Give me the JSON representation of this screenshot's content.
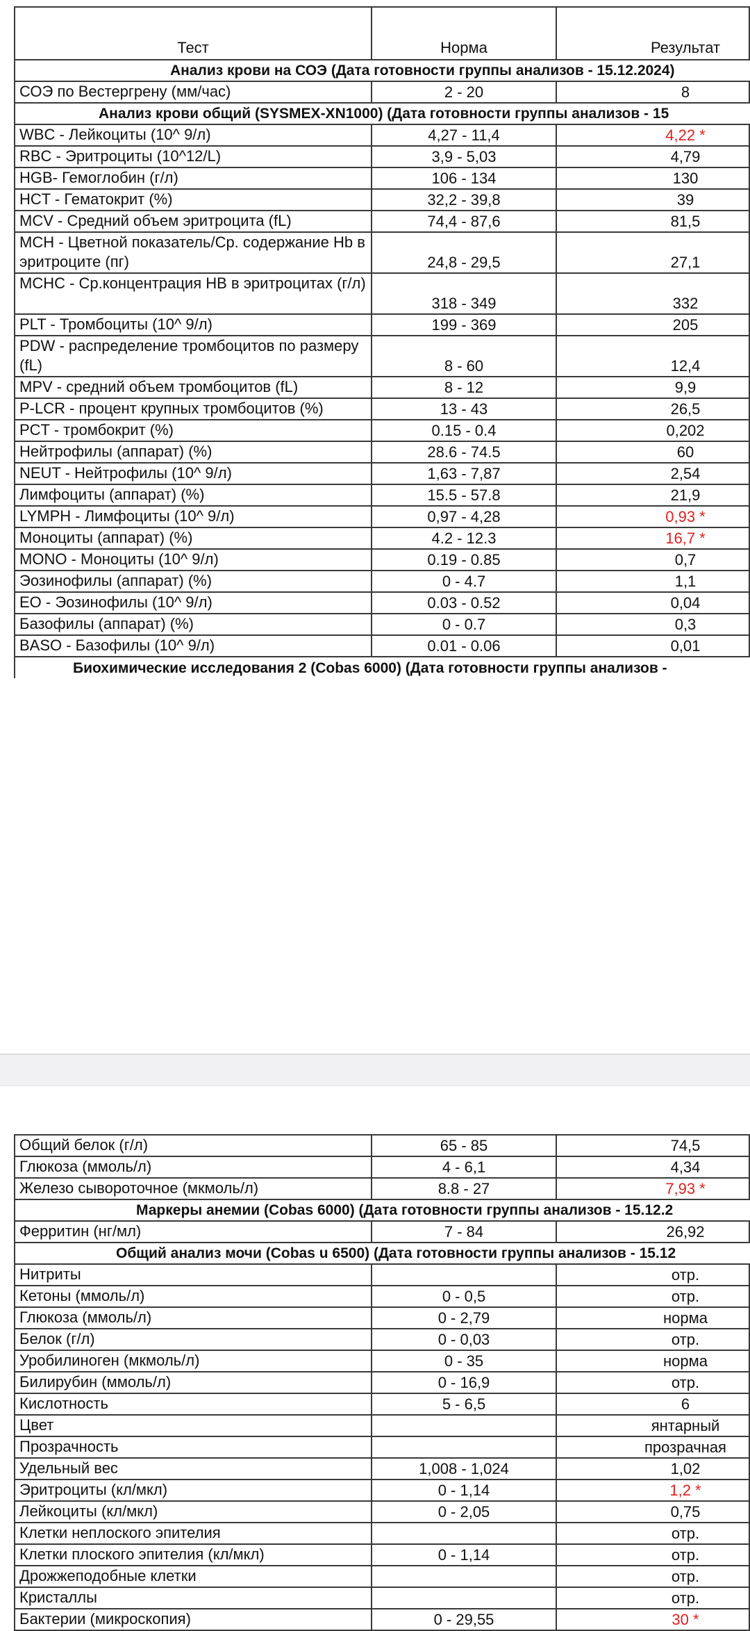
{
  "header": {
    "test": "Тест",
    "norm": "Норма",
    "result": "Результат"
  },
  "page1": [
    {
      "type": "section",
      "text": "Анализ крови на СОЭ   (Дата готовности группы анализов - 15.12.2024)",
      "indent": 223
    },
    {
      "test": "СОЭ по Вестергрену (мм/час)",
      "norm": "2 - 20",
      "result": "8"
    },
    {
      "type": "section",
      "text": "Анализ крови общий (SYSMEX-XN1000)   (Дата готовности группы анализов - 15",
      "indent": 120
    },
    {
      "test": "WBC - Лейкоциты (10^ 9/л)",
      "norm": "4,27 - 11,4",
      "result": "4,22 *",
      "flag": true
    },
    {
      "test": "RBC - Эритроциты (10^12/L)",
      "norm": "3,9 - 5,03",
      "result": "4,79"
    },
    {
      "test": "HGB- Гемоглобин (г/л)",
      "norm": "106 - 134",
      "result": "130"
    },
    {
      "test": "HCT - Гематокрит (%)",
      "norm": "32,2 - 39,8",
      "result": "39"
    },
    {
      "test": "MCV - Средний объем эритроцита (fL)",
      "norm": "74,4 - 87,6",
      "result": "81,5"
    },
    {
      "test": "MCH - Цветной показатель/Ср. содержание Hb в эритроците (пг)",
      "norm": "24,8 - 29,5",
      "result": "27,1",
      "double": true
    },
    {
      "test": "MCHC - Ср.концентрация HB в эритроцитах (г/л)",
      "norm": "318 - 349",
      "result": "332",
      "double": true
    },
    {
      "test": "PLT - Тромбоциты (10^ 9/л)",
      "norm": "199 - 369",
      "result": "205"
    },
    {
      "test": "PDW -  распределение тромбоцитов по размеру (fL)",
      "norm": "8 - 60",
      "result": "12,4",
      "double": true
    },
    {
      "test": "MPV - средний объем тромбоцитов (fL)",
      "norm": "8 - 12",
      "result": "9,9"
    },
    {
      "test": "P-LCR - процент крупных тромбоцитов (%)",
      "norm": "13 - 43",
      "result": "26,5"
    },
    {
      "test": "PCT - тромбокрит (%)",
      "norm": "0.15 - 0.4",
      "result": "0,202"
    },
    {
      "test": "Нейтрофилы (аппарат) (%)",
      "norm": "28.6 - 74.5",
      "result": "60"
    },
    {
      "test": "NEUT - Нейтрофилы (10^ 9/л)",
      "norm": "1,63 - 7,87",
      "result": "2,54"
    },
    {
      "test": "Лимфоциты (аппарат) (%)",
      "norm": "15.5 - 57.8",
      "result": "21,9"
    },
    {
      "test": "LYMPH - Лимфоциты (10^ 9/л)",
      "norm": "0,97 - 4,28",
      "result": "0,93 *",
      "flag": true
    },
    {
      "test": "Моноциты (аппарат) (%)",
      "norm": "4.2 - 12.3",
      "result": "16,7 *",
      "flag": true
    },
    {
      "test": "MONO - Моноциты (10^ 9/л)",
      "norm": "0.19 - 0.85",
      "result": "0,7"
    },
    {
      "test": "Эозинофилы (аппарат) (%)",
      "norm": "0 - 4.7",
      "result": "1,1"
    },
    {
      "test": "EO - Эозинофилы (10^ 9/л)",
      "norm": "0.03 - 0.52",
      "result": "0,04"
    },
    {
      "test": "Базофилы (аппарат) (%)",
      "norm": "0 - 0.7",
      "result": "0,3"
    },
    {
      "test": "BASO - Базофилы (10^ 9/л)",
      "norm": "0.01 - 0.06",
      "result": "0,01"
    },
    {
      "type": "section",
      "text": "Биохимические исследования 2 (Cobas 6000)   (Дата готовности группы анализов -",
      "indent": 83,
      "open": true
    }
  ],
  "page2": [
    {
      "test": "Общий белок (г/л)",
      "norm": "65 - 85",
      "result": "74,5"
    },
    {
      "test": "Глюкоза (ммоль/л)",
      "norm": "4 - 6,1",
      "result": "4,34"
    },
    {
      "test": "Железо сывороточное (мкмоль/л)",
      "norm": "8.8 - 27",
      "result": "7,93 *",
      "flag": true
    },
    {
      "type": "section",
      "text": "Маркеры анемии (Cobas 6000)   (Дата готовности группы анализов - 15.12.2",
      "indent": 174
    },
    {
      "test": "Ферритин (нг/мл)",
      "norm": "7 - 84",
      "result": "26,92"
    },
    {
      "type": "section",
      "text": "Общий анализ мочи (Cobas u 6500)   (Дата готовности группы анализов - 15.12",
      "indent": 145
    },
    {
      "test": "Нитриты",
      "norm": "",
      "result": "отр."
    },
    {
      "test": "Кетоны (ммоль/л)",
      "norm": "0 - 0,5",
      "result": "отр."
    },
    {
      "test": "Глюкоза (ммоль/л)",
      "norm": "0 - 2,79",
      "result": "норма"
    },
    {
      "test": "Белок (г/л)",
      "norm": "0 - 0,03",
      "result": "отр."
    },
    {
      "test": "Уробилиноген (мкмоль/л)",
      "norm": "0 - 35",
      "result": "норма"
    },
    {
      "test": "Билирубин (ммоль/л)",
      "norm": "0 - 16,9",
      "result": "отр."
    },
    {
      "test": "Кислотность",
      "norm": "5 - 6,5",
      "result": "6"
    },
    {
      "test": "Цвет",
      "norm": "",
      "result": "янтарный"
    },
    {
      "test": "Прозрачность",
      "norm": "",
      "result": "прозрачная"
    },
    {
      "test": "Удельный вес",
      "norm": "1,008 - 1,024",
      "result": "1,02"
    },
    {
      "test": "Эритроциты (кл/мкл)",
      "norm": "0 - 1,14",
      "result": "1,2 *",
      "flag": true
    },
    {
      "test": "Лейкоциты (кл/мкл)",
      "norm": "0 - 2,05",
      "result": "0,75"
    },
    {
      "test": "Клетки неплоского эпителия",
      "norm": "",
      "result": "отр."
    },
    {
      "test": "Клетки плоского эпителия (кл/мкл)",
      "norm": "0 - 1,14",
      "result": "отр."
    },
    {
      "test": "Дрожжеподобные клетки",
      "norm": "",
      "result": "отр."
    },
    {
      "test": "Кристаллы",
      "norm": "",
      "result": "отр."
    },
    {
      "test": "Бактерии (микроскопия)",
      "norm": "0 - 29,55",
      "result": "30 *",
      "flag": true
    }
  ],
  "colors": {
    "flag": "#e02020",
    "border": "#3a3a3a",
    "gap": "#f0f0f2"
  }
}
